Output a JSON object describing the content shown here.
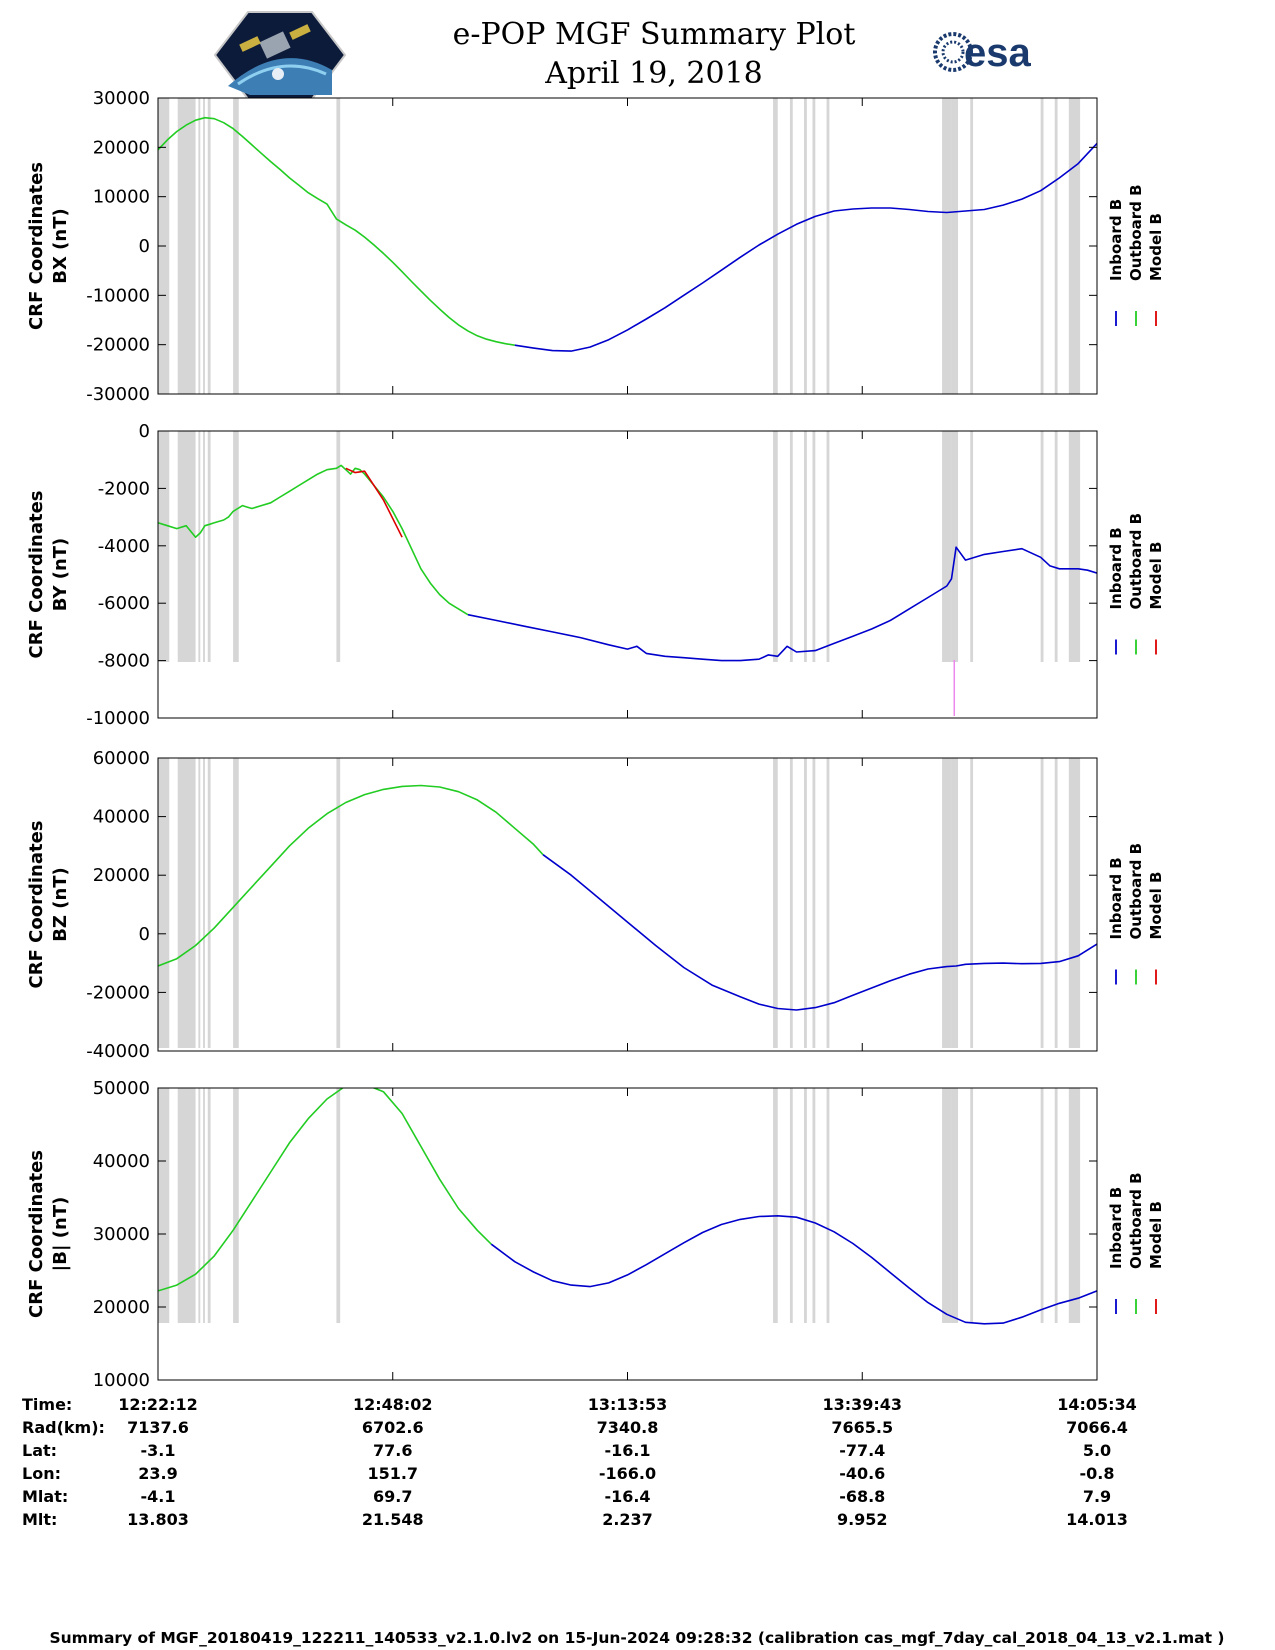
{
  "title_line1": "e-POP MGF Summary Plot",
  "title_line2": "April 19, 2018",
  "logo_left": "CASSIOPE satellite mission logo",
  "logo_right": "esa",
  "colors": {
    "inboard": "#0000cc",
    "outboard": "#22cc22",
    "model": "#dd0000",
    "gap": "#d6d6d6",
    "spike": "#ee88ee"
  },
  "legend": [
    "Inboard B",
    "Outboard B",
    "Model B"
  ],
  "x_ticks": [
    "12:22:12",
    "12:48:02",
    "13:13:53",
    "13:39:43",
    "14:05:34"
  ],
  "chart_data": [
    {
      "type": "line",
      "ylabel_line1": "CRF Coordinates",
      "ylabel_line2": "BX (nT)",
      "ylim": [
        -30000,
        30000
      ],
      "yticks": [
        "30000",
        "20000",
        "10000",
        "0",
        "-10000",
        "-20000",
        "-30000"
      ],
      "series": [
        {
          "name": "Outboard B",
          "x": [
            0,
            1,
            2,
            3,
            4,
            5,
            6,
            7,
            8,
            9,
            10,
            11,
            12,
            13,
            14,
            15,
            16,
            17,
            18,
            19,
            20,
            21,
            22,
            23,
            24,
            25,
            26,
            27,
            28,
            29,
            30,
            31,
            32,
            33,
            34,
            35,
            36,
            37,
            38
          ],
          "y": [
            19500,
            21500,
            23200,
            24500,
            25500,
            26000,
            25800,
            25000,
            23800,
            22200,
            20500,
            18800,
            17100,
            15500,
            13800,
            12300,
            10800,
            9600,
            8500,
            5500,
            4300,
            3200,
            1800,
            200,
            -1500,
            -3300,
            -5200,
            -7200,
            -9100,
            -11000,
            -12800,
            -14500,
            -16000,
            -17200,
            -18200,
            -18900,
            -19400,
            -19800,
            -20100
          ]
        },
        {
          "name": "Inboard B",
          "x": [
            38,
            40,
            42,
            44,
            46,
            48,
            50,
            52,
            54,
            56,
            58,
            60,
            62,
            64,
            66,
            68,
            70,
            72,
            74,
            76,
            78,
            80,
            82,
            84,
            86,
            88,
            90,
            92,
            94,
            96,
            98,
            100
          ],
          "y": [
            -20100,
            -20700,
            -21200,
            -21300,
            -20500,
            -19000,
            -17000,
            -14800,
            -12500,
            -10000,
            -7500,
            -4900,
            -2300,
            200,
            2400,
            4400,
            6000,
            7100,
            7500,
            7700,
            7700,
            7400,
            7000,
            6800,
            7100,
            7400,
            8300,
            9500,
            11200,
            13800,
            16700,
            20800
          ]
        },
        {
          "name": "Model B",
          "x": [],
          "y": []
        }
      ]
    },
    {
      "type": "line",
      "ylabel_line1": "CRF Coordinates",
      "ylabel_line2": "BY (nT)",
      "ylim": [
        -10000,
        0
      ],
      "yticks": [
        "0",
        "-2000",
        "-4000",
        "-6000",
        "-8000",
        "-10000"
      ],
      "series": [
        {
          "name": "Outboard B",
          "x": [
            0,
            1,
            2,
            3,
            3.5,
            4,
            4.5,
            5,
            5.5,
            6,
            6.5,
            7,
            7.5,
            8,
            8.5,
            9,
            9.5,
            10,
            11,
            12,
            13,
            14,
            15,
            16,
            17,
            18,
            19,
            19.5,
            20,
            20.5,
            21,
            21.5,
            22,
            22.5,
            23,
            24,
            25,
            26,
            27,
            28,
            29,
            30,
            31,
            32,
            33
          ],
          "y": [
            -3200,
            -3300,
            -3400,
            -3300,
            -3500,
            -3700,
            -3550,
            -3300,
            -3250,
            -3200,
            -3150,
            -3100,
            -3000,
            -2800,
            -2700,
            -2600,
            -2650,
            -2700,
            -2600,
            -2500,
            -2300,
            -2100,
            -1900,
            -1700,
            -1500,
            -1350,
            -1300,
            -1200,
            -1350,
            -1500,
            -1300,
            -1350,
            -1500,
            -1700,
            -1900,
            -2300,
            -2800,
            -3400,
            -4100,
            -4800,
            -5300,
            -5700,
            -6000,
            -6200,
            -6400
          ]
        },
        {
          "name": "Inboard B",
          "x": [
            33,
            36,
            39,
            42,
            45,
            48,
            50,
            51,
            52,
            54,
            56,
            58,
            60,
            62,
            64,
            65,
            66,
            67,
            68,
            70,
            72,
            74,
            76,
            78,
            80,
            82,
            84,
            84.5,
            85,
            86,
            88,
            90,
            92,
            94,
            95,
            96,
            98,
            99,
            100
          ],
          "y": [
            -6400,
            -6600,
            -6800,
            -7000,
            -7200,
            -7450,
            -7600,
            -7500,
            -7750,
            -7850,
            -7900,
            -7950,
            -8000,
            -8000,
            -7950,
            -7800,
            -7850,
            -7500,
            -7700,
            -7650,
            -7400,
            -7150,
            -6900,
            -6600,
            -6200,
            -5800,
            -5400,
            -5150,
            -4050,
            -4500,
            -4300,
            -4200,
            -4100,
            -4400,
            -4700,
            -4800,
            -4800,
            -4850,
            -4950
          ]
        },
        {
          "name": "Model B",
          "x": [
            20,
            21,
            22,
            24,
            26
          ],
          "y": [
            -1300,
            -1450,
            -1400,
            -2400,
            -3700
          ]
        }
      ]
    },
    {
      "type": "line",
      "ylabel_line1": "CRF Coordinates",
      "ylabel_line2": "BZ (nT)",
      "ylim": [
        -40000,
        60000
      ],
      "yticks": [
        "60000",
        "40000",
        "20000",
        "0",
        "-20000",
        "-40000"
      ],
      "series": [
        {
          "name": "Outboard B",
          "x": [
            0,
            2,
            4,
            6,
            8,
            10,
            12,
            14,
            16,
            18,
            20,
            22,
            24,
            26,
            28,
            30,
            32,
            34,
            36,
            38,
            40,
            41
          ],
          "y": [
            -11000,
            -8500,
            -4000,
            2000,
            9000,
            16000,
            23000,
            30000,
            36000,
            41000,
            44800,
            47500,
            49300,
            50300,
            50600,
            50100,
            48500,
            45700,
            41500,
            36000,
            30500,
            27000
          ]
        },
        {
          "name": "Inboard B",
          "x": [
            41,
            44,
            47,
            50,
            53,
            56,
            59,
            62,
            64,
            66,
            68,
            70,
            72,
            74,
            76,
            78,
            80,
            82,
            84,
            85,
            86,
            88,
            90,
            92,
            94,
            96,
            98,
            100
          ],
          "y": [
            27000,
            20000,
            12000,
            4000,
            -4000,
            -11500,
            -17500,
            -21500,
            -24000,
            -25500,
            -26000,
            -25200,
            -23500,
            -21000,
            -18500,
            -16000,
            -13800,
            -12000,
            -11200,
            -11000,
            -10400,
            -10100,
            -10000,
            -10200,
            -10100,
            -9500,
            -7500,
            -3500
          ]
        },
        {
          "name": "Model B",
          "x": [],
          "y": []
        }
      ]
    },
    {
      "type": "line",
      "ylabel_line1": "CRF Coordinates",
      "ylabel_line2": "|B| (nT)",
      "ylim": [
        10000,
        50000
      ],
      "yticks": [
        "50000",
        "40000",
        "30000",
        "20000",
        "10000"
      ],
      "series": [
        {
          "name": "Outboard B",
          "x": [
            0,
            2,
            4,
            6,
            8,
            10,
            12,
            14,
            16,
            18,
            20,
            22,
            24,
            26,
            28,
            30,
            32,
            34,
            35.5
          ],
          "y": [
            22200,
            23000,
            24500,
            27000,
            30500,
            34500,
            38500,
            42500,
            45800,
            48500,
            50300,
            50500,
            49500,
            46500,
            42000,
            37500,
            33500,
            30500,
            28600
          ]
        },
        {
          "name": "Inboard B",
          "x": [
            35.5,
            38,
            40,
            42,
            44,
            46,
            48,
            50,
            52,
            54,
            56,
            58,
            60,
            62,
            64,
            66,
            68,
            70,
            72,
            74,
            76,
            78,
            80,
            82,
            84,
            86,
            88,
            90,
            92,
            94,
            96,
            98,
            100
          ],
          "y": [
            28600,
            26200,
            24800,
            23600,
            23000,
            22800,
            23300,
            24400,
            25800,
            27300,
            28800,
            30200,
            31300,
            32000,
            32400,
            32500,
            32300,
            31500,
            30300,
            28700,
            26800,
            24700,
            22600,
            20600,
            19000,
            17900,
            17700,
            17800,
            18600,
            19600,
            20500,
            21200,
            22200
          ]
        },
        {
          "name": "Model B",
          "x": [],
          "y": []
        }
      ]
    }
  ],
  "data_gaps_percent": [
    [
      0,
      1.2
    ],
    [
      2.1,
      4
    ],
    [
      4.3,
      4.5
    ],
    [
      4.8,
      5
    ],
    [
      5.3,
      5.6
    ],
    [
      8,
      8.6
    ],
    [
      19,
      19.4
    ],
    [
      65.5,
      66
    ],
    [
      67.3,
      67.6
    ],
    [
      68.8,
      69.1
    ],
    [
      69.7,
      70
    ],
    [
      71.2,
      71.5
    ],
    [
      83.5,
      84.5
    ],
    [
      84.5,
      85.2
    ],
    [
      86.5,
      86.8
    ],
    [
      94,
      94.3
    ],
    [
      95.5,
      95.8
    ],
    [
      97,
      98.2
    ]
  ],
  "by_spike_x_percent": 84.8,
  "orbit_table": {
    "labels": [
      "Time:",
      "Rad(km):",
      "Lat:",
      "Lon:",
      "Mlat:",
      "Mlt:"
    ],
    "columns": [
      [
        "12:22:12",
        "7137.6",
        "-3.1",
        "23.9",
        "-4.1",
        "13.803"
      ],
      [
        "12:48:02",
        "6702.6",
        "77.6",
        "151.7",
        "69.7",
        "21.548"
      ],
      [
        "13:13:53",
        "7340.8",
        "-16.1",
        "-166.0",
        "-16.4",
        "2.237"
      ],
      [
        "13:39:43",
        "7665.5",
        "-77.4",
        "-40.6",
        "-68.8",
        "9.952"
      ],
      [
        "14:05:34",
        "7066.4",
        "5.0",
        "-0.8",
        "7.9",
        "14.013"
      ]
    ]
  },
  "footer": "Summary of MGF_20180419_122211_140533_v2.1.0.lv2 on 15-Jun-2024 09:28:32 (calibration cas_mgf_7day_cal_2018_04_13_v2.1.mat )"
}
